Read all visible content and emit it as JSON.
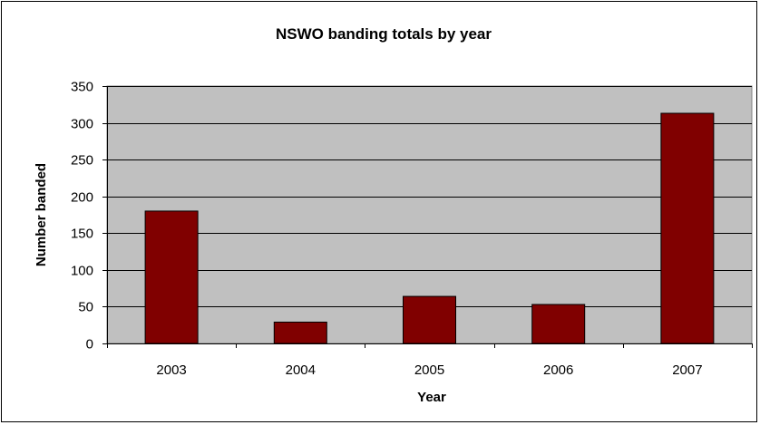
{
  "chart_data": {
    "type": "bar",
    "title": "NSWO banding totals by year",
    "xlabel": "Year",
    "ylabel": "Number banded",
    "categories": [
      "2003",
      "2004",
      "2005",
      "2006",
      "2007"
    ],
    "values": [
      180,
      29,
      64,
      53,
      313
    ],
    "ylim": [
      0,
      350
    ],
    "yticks": [
      0,
      50,
      100,
      150,
      200,
      250,
      300,
      350
    ],
    "grid": true,
    "legend": "none",
    "colors": {
      "bar": "#800000",
      "plot_background": "#c0c0c0",
      "gridline": "#000000"
    }
  }
}
